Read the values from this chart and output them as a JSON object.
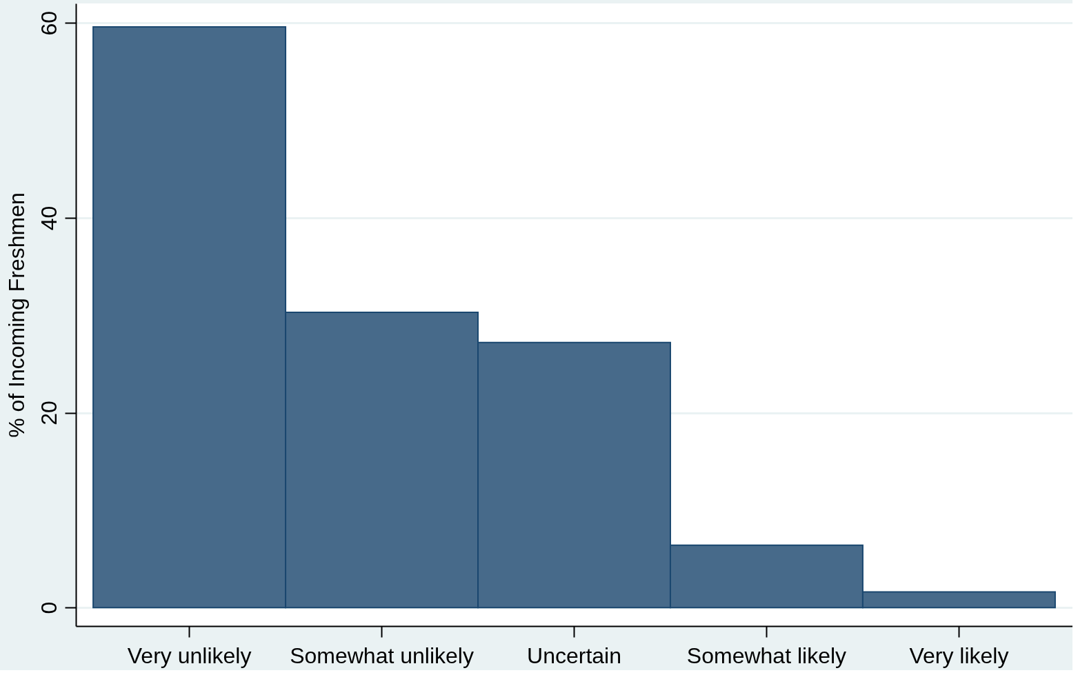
{
  "chart_data": {
    "type": "bar",
    "ylabel": "% of Incoming Freshmen",
    "categories": [
      "Very unlikely",
      "Somewhat unlikely",
      "Uncertain",
      "Somewhat likely",
      "Very likely"
    ],
    "values": [
      59.6,
      30.3,
      27.2,
      6.4,
      1.6
    ],
    "color": "#476a8a",
    "ylim": [
      -1.9,
      62
    ],
    "yticks": [
      0,
      20,
      40,
      60
    ],
    "grid": "y"
  }
}
